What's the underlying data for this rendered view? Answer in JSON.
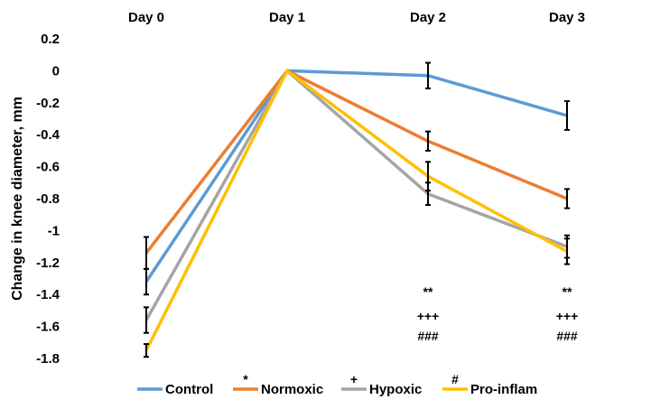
{
  "chart_data": {
    "type": "line",
    "categories": [
      "Day 0",
      "Day 1",
      "Day 2",
      "Day 3"
    ],
    "ylabel": "Change in knee diameter, mm",
    "xlabel": "",
    "ylim": [
      -1.8,
      0.2
    ],
    "yticks": [
      0.2,
      0,
      -0.2,
      -0.4,
      -0.6,
      -0.8,
      -1,
      -1.2,
      -1.4,
      -1.6,
      -1.8
    ],
    "ytick_labels": [
      "0.2",
      "0",
      "-0.2",
      "-0.4",
      "-0.6",
      "-0.8",
      "-1",
      "-1.2",
      "-1.4",
      "-1.6",
      "-1.8"
    ],
    "grid": false,
    "legend_position": "bottom",
    "x_labels_position": "top",
    "series": [
      {
        "name": "Control",
        "color": "#5B9BD5",
        "values": [
          -1.32,
          0,
          -0.03,
          -0.28
        ],
        "errors": [
          0.08,
          0,
          0.08,
          0.09
        ],
        "legend_marker": ""
      },
      {
        "name": "Normoxic",
        "color": "#ED7D31",
        "values": [
          -1.14,
          0,
          -0.44,
          -0.8
        ],
        "errors": [
          0.1,
          0,
          0.06,
          0.06
        ],
        "legend_marker": "*"
      },
      {
        "name": "Hypoxic",
        "color": "#A5A5A5",
        "values": [
          -1.56,
          0,
          -0.77,
          -1.1
        ],
        "errors": [
          0.08,
          0,
          0.07,
          0.07
        ],
        "legend_marker": "+"
      },
      {
        "name": "Pro-inflam",
        "color": "#FFC000",
        "values": [
          -1.75,
          0,
          -0.66,
          -1.13
        ],
        "errors": [
          0.04,
          0,
          0.09,
          0.08
        ],
        "legend_marker": "#"
      }
    ],
    "annotations": [
      {
        "category": "Day 2",
        "lines": [
          "**",
          "+++",
          "###"
        ]
      },
      {
        "category": "Day 3",
        "lines": [
          "**",
          "+++",
          "###"
        ]
      }
    ]
  }
}
